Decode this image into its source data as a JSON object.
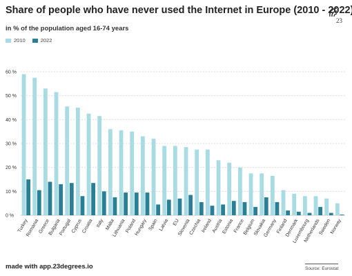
{
  "header": {
    "title": "Share of people who have never used the Internet in Europe (2010 - 2022)",
    "subtitle": "in % of the population aged 16-74 years"
  },
  "legend": [
    {
      "label": "2010",
      "color": "#a8dbe3"
    },
    {
      "label": "2022",
      "color": "#2a7f95"
    }
  ],
  "logo_text": "23",
  "footer": {
    "made_with": "made with app.23degrees.io",
    "source": "Source: Eurostat"
  },
  "chart_data": {
    "type": "bar",
    "title": "Share of people who have never used the Internet in Europe (2010 - 2022)",
    "subtitle": "in % of the population aged 16-74 years",
    "categories": [
      "Turkey",
      "Romania",
      "Greece",
      "Bulgaria",
      "Portugal",
      "Cyprus",
      "Croatia",
      "Italy",
      "Malta",
      "Lithuania",
      "Poland",
      "Hungary",
      "Spain",
      "Latvia",
      "EU",
      "Slovenia",
      "Czechia",
      "Ireland",
      "Austria",
      "Estonia",
      "France",
      "Belgium",
      "Slovakia",
      "Germany",
      "Finland",
      "Denmark",
      "Luxembourg",
      "Netherlands",
      "Sweden",
      "Norway"
    ],
    "series": [
      {
        "name": "2010",
        "color": "#a8dbe3",
        "values": [
          59,
          57.5,
          53,
          51.5,
          45.5,
          45,
          42.5,
          41.5,
          36,
          35.5,
          35,
          33,
          32,
          29,
          29,
          28.5,
          27.5,
          27.5,
          23,
          22,
          20,
          17.5,
          17.5,
          16.5,
          10.5,
          9,
          8,
          8,
          7,
          5
        ]
      },
      {
        "name": "2022",
        "color": "#2a7f95",
        "values": [
          15,
          10.5,
          14,
          13,
          13.5,
          8,
          13.5,
          10,
          7.5,
          9.5,
          9.5,
          9.5,
          4.5,
          6.5,
          7,
          8.5,
          5.5,
          4,
          4.5,
          6,
          5.5,
          3.5,
          7.5,
          5.5,
          2,
          1.5,
          1,
          3.5,
          1,
          0.3
        ]
      }
    ],
    "yticks": [
      "0 %",
      "10 %",
      "20 %",
      "30 %",
      "40 %",
      "50 %",
      "60 %"
    ],
    "ylim": [
      0,
      60
    ],
    "grid": true,
    "legend_position": "top-left"
  }
}
